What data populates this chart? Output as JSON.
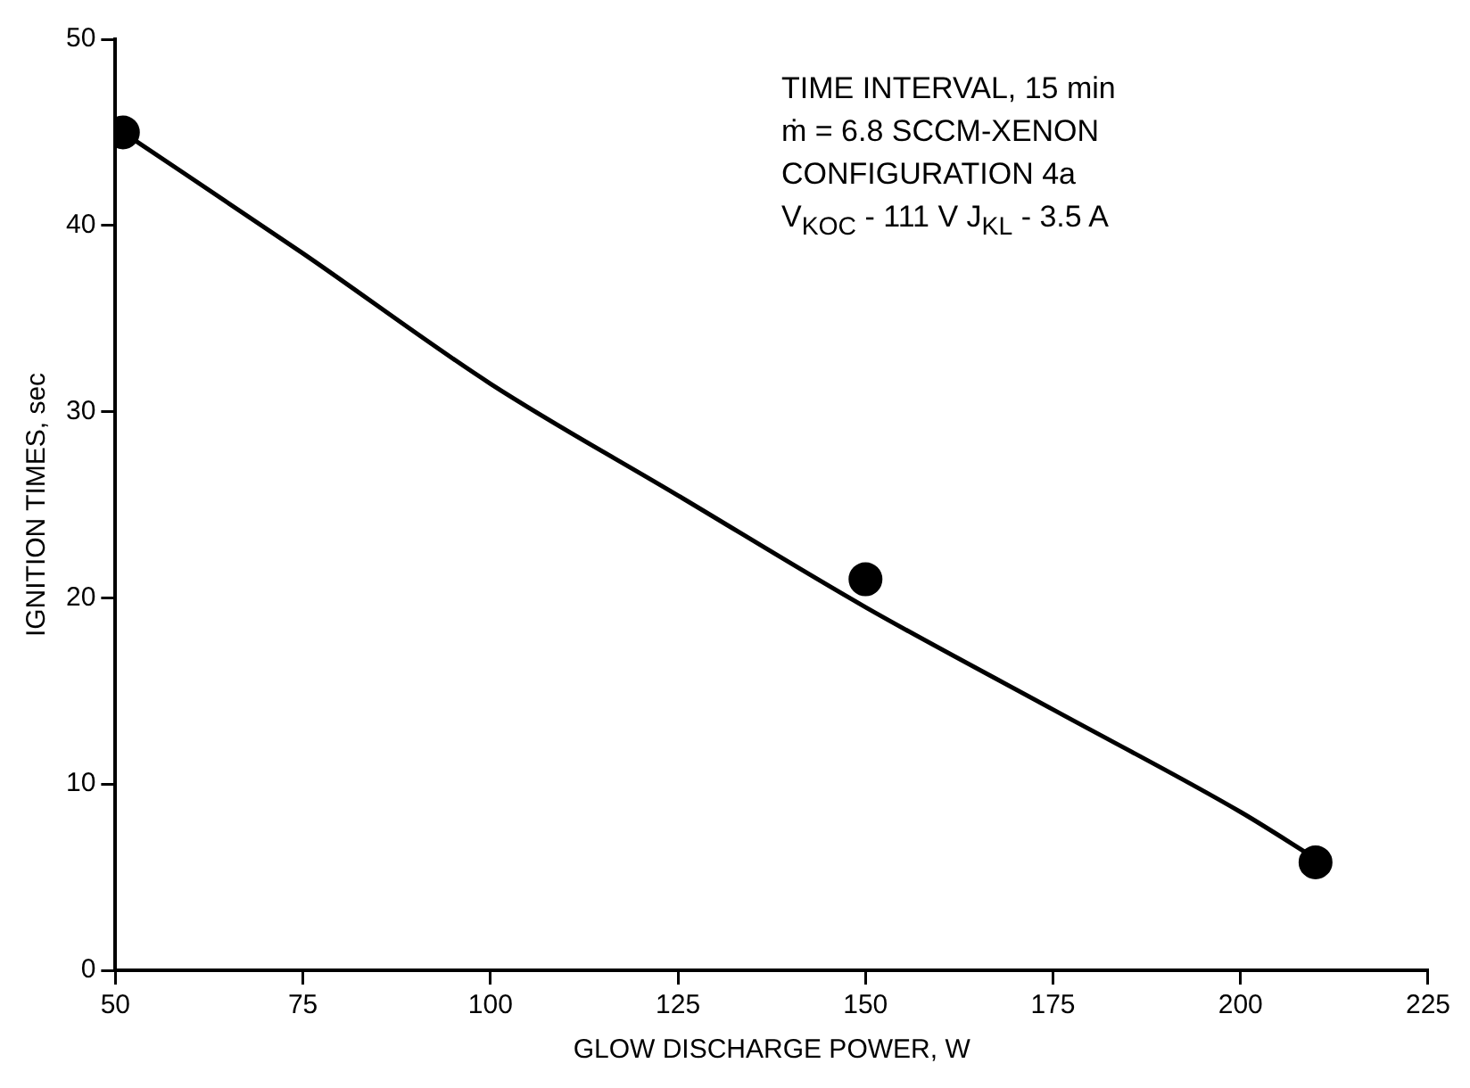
{
  "chart_data": {
    "type": "scatter",
    "xlabel": "GLOW DISCHARGE POWER, W",
    "ylabel": "IGNITION TIMES, sec",
    "series": [
      {
        "type": "scatter",
        "color": "#000000",
        "marker": "circle",
        "x": [
          51,
          150,
          210
        ],
        "values": [
          45,
          21,
          5.8
        ]
      },
      {
        "type": "line",
        "color": "#000000",
        "marker": "none",
        "line_style": "solid",
        "x": [
          51,
          75,
          100,
          125,
          150,
          175,
          200,
          210
        ],
        "values": [
          45,
          38.5,
          31.5,
          25.5,
          19.5,
          14,
          8.5,
          6
        ]
      }
    ],
    "xlim": [
      50,
      225
    ],
    "xticks": [
      50,
      75,
      100,
      125,
      150,
      175,
      200,
      225
    ],
    "ylim": [
      0,
      50
    ],
    "yticks": [
      0,
      10,
      20,
      30,
      40,
      50
    ],
    "grid": false,
    "legend": false,
    "annotations": [
      "TIME INTERVAL, 15 min",
      "ṁ = 6.8 SCCM-XENON",
      "CONFIGURATION 4a",
      "V$_{KOC}$ - 111 V   J$_{KL}$ - 3.5 A"
    ]
  }
}
